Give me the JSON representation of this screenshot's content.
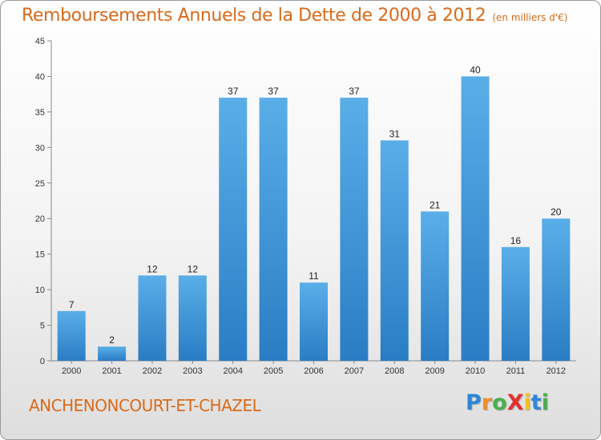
{
  "title": "Remboursements Annuels de la Dette de 2000 à 2012",
  "subtitle": "(en milliers d'€)",
  "commune": "ANCHENONCOURT-ET-CHAZEL",
  "logo": {
    "text": "ProXiti",
    "letters": [
      "P",
      "r",
      "o",
      "X",
      "i",
      "t",
      "i"
    ],
    "colors": [
      "#2e86d6",
      "#f28c28",
      "#49b04b",
      "#e0312f",
      "#f2c21b",
      "#2e86d6",
      "#49b04b"
    ]
  },
  "colors": {
    "bar_top": "#5aaee8",
    "bar_bottom": "#2a7dc4",
    "accent": "#d96a1a"
  },
  "chart_data": {
    "type": "bar",
    "categories": [
      "2000",
      "2001",
      "2002",
      "2003",
      "2004",
      "2005",
      "2006",
      "2007",
      "2008",
      "2009",
      "2010",
      "2011",
      "2012"
    ],
    "values": [
      7,
      2,
      12,
      12,
      37,
      37,
      11,
      37,
      31,
      21,
      40,
      16,
      20
    ],
    "data_labels": [
      "7",
      "2",
      "12",
      "12",
      "37",
      "37",
      "11",
      "37",
      "31",
      "21",
      "40",
      "16",
      "20"
    ],
    "y_ticks": [
      0,
      5,
      10,
      15,
      20,
      25,
      30,
      35,
      40,
      45
    ],
    "y_tick_labels": [
      "0",
      "5",
      "10",
      "15",
      "20",
      "25",
      "30",
      "35",
      "40",
      "45"
    ],
    "ylim": [
      0,
      45
    ],
    "grid": false,
    "legend": "none"
  }
}
